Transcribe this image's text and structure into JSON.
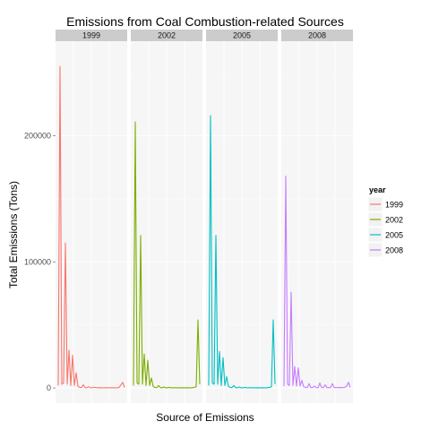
{
  "chart_data": {
    "type": "line",
    "title": "Emissions from Coal Combustion-related Sources",
    "xlabel": "Source of Emissions",
    "ylabel": "Total Emissions (Tons)",
    "ylim": [
      -12000,
      275000
    ],
    "yticks": [
      0,
      100000,
      200000
    ],
    "ytick_labels": [
      "0",
      "100000",
      "200000"
    ],
    "x_tick_labels_shown": false,
    "grid": true,
    "legend": {
      "title": "year",
      "placement": "right"
    },
    "facet_by": "year",
    "series": [
      {
        "name": "1999",
        "color": "#F8766D",
        "values": [
          2000,
          255000,
          3000,
          4000,
          115000,
          3000,
          30000,
          2000,
          26000,
          2000,
          12000,
          1500,
          500,
          400,
          2500,
          300,
          200,
          1000,
          200,
          150,
          600,
          300,
          200,
          300,
          200,
          150,
          100,
          300,
          200,
          150,
          200,
          250,
          150,
          200,
          500,
          2500,
          4500,
          300
        ]
      },
      {
        "name": "2002",
        "color": "#7CAE00",
        "values": [
          2000,
          211000,
          4000,
          3000,
          121000,
          3000,
          27000,
          2000,
          22000,
          2000,
          8000,
          1200,
          400,
          300,
          2000,
          250,
          200,
          800,
          200,
          150,
          500,
          200,
          150,
          250,
          200,
          150,
          100,
          200,
          150,
          150,
          200,
          150,
          150,
          300,
          500,
          1000,
          54000,
          3000
        ]
      },
      {
        "name": "2005",
        "color": "#00BFC4",
        "values": [
          2000,
          216000,
          4000,
          3000,
          121000,
          3000,
          29000,
          2000,
          24000,
          2000,
          9000,
          1200,
          400,
          300,
          2000,
          250,
          200,
          800,
          200,
          150,
          500,
          200,
          150,
          250,
          200,
          150,
          100,
          200,
          150,
          150,
          200,
          150,
          150,
          300,
          500,
          1000,
          54000,
          3000
        ]
      },
      {
        "name": "2008",
        "color": "#C77CFF",
        "values": [
          1500,
          168000,
          3000,
          2000,
          76000,
          2000,
          17000,
          1500,
          16000,
          1500,
          6000,
          1000,
          500,
          300,
          3500,
          300,
          400,
          1500,
          300,
          200,
          4000,
          400,
          300,
          2500,
          300,
          300,
          300,
          3500,
          400,
          300,
          300,
          400,
          300,
          400,
          500,
          1500,
          4500,
          500
        ]
      }
    ]
  }
}
